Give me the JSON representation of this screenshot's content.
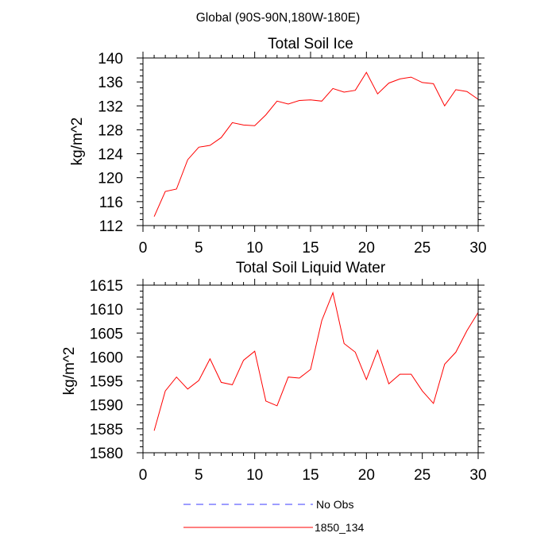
{
  "figure_title": "Global (90S-90N,180W-180E)",
  "legend": [
    {
      "label": "No Obs",
      "color": "#3b3bff",
      "dash": "dashed"
    },
    {
      "label": "1850_134",
      "color": "#ff0000",
      "dash": "solid"
    }
  ],
  "chart_data": [
    {
      "type": "line",
      "title": "Total Soil Ice",
      "ylabel": "kg/m^2",
      "xlabel": "",
      "xlim": [
        0,
        30
      ],
      "ylim": [
        112,
        140
      ],
      "xticks": [
        0,
        5,
        10,
        15,
        20,
        25,
        30
      ],
      "yticks": [
        112,
        116,
        120,
        124,
        128,
        132,
        136,
        140
      ],
      "x": [
        1,
        2,
        3,
        4,
        5,
        6,
        7,
        8,
        9,
        10,
        11,
        12,
        13,
        14,
        15,
        16,
        17,
        18,
        19,
        20,
        21,
        22,
        23,
        24,
        25,
        26,
        27,
        28,
        29,
        30
      ],
      "series": [
        {
          "name": "1850_134",
          "color": "#ff0000",
          "values": [
            113.5,
            117.7,
            118.1,
            123.0,
            125.1,
            125.4,
            126.7,
            129.2,
            128.8,
            128.7,
            130.5,
            132.8,
            132.3,
            132.9,
            133.0,
            132.8,
            134.9,
            134.3,
            134.6,
            137.6,
            134.0,
            135.8,
            136.5,
            136.8,
            135.9,
            135.7,
            132.0,
            134.7,
            134.4,
            133.1
          ]
        }
      ]
    },
    {
      "type": "line",
      "title": "Total Soil Liquid Water",
      "ylabel": "kg/m^2",
      "xlabel": "",
      "xlim": [
        0,
        30
      ],
      "ylim": [
        1580,
        1615
      ],
      "xticks": [
        0,
        5,
        10,
        15,
        20,
        25,
        30
      ],
      "yticks": [
        1580,
        1585,
        1590,
        1595,
        1600,
        1605,
        1610,
        1615
      ],
      "x": [
        1,
        2,
        3,
        4,
        5,
        6,
        7,
        8,
        9,
        10,
        11,
        12,
        13,
        14,
        15,
        16,
        17,
        18,
        19,
        20,
        21,
        22,
        23,
        24,
        25,
        26,
        27,
        28,
        29,
        30
      ],
      "series": [
        {
          "name": "1850_134",
          "color": "#ff0000",
          "values": [
            1584.6,
            1592.9,
            1595.8,
            1593.3,
            1595.1,
            1599.6,
            1594.7,
            1594.2,
            1599.3,
            1601.2,
            1590.8,
            1589.8,
            1595.8,
            1595.6,
            1597.4,
            1607.6,
            1613.4,
            1602.8,
            1601.0,
            1595.3,
            1601.4,
            1594.4,
            1596.4,
            1596.4,
            1592.9,
            1590.3,
            1598.5,
            1601.0,
            1605.5,
            1609.3
          ]
        }
      ]
    }
  ]
}
